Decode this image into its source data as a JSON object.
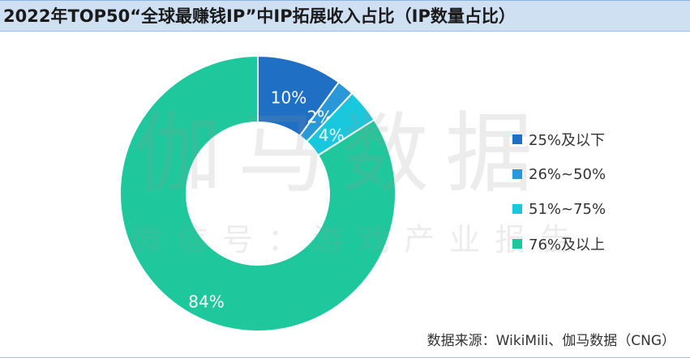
{
  "title": "2022年TOP50“全球最赚钱IP”中IP拓展收入占比（IP数量占比）",
  "source": "数据来源：WikiMili、伽马数据（CNG）",
  "watermark": {
    "main": "伽马数据",
    "sub": "微信号：游戏产业报告"
  },
  "chart_data": {
    "type": "pie",
    "donut": true,
    "title": "2022年TOP50“全球最赚钱IP”中IP拓展收入占比（IP数量占比）",
    "categories": [
      "25%及以下",
      "26%~50%",
      "51%~75%",
      "76%及以上"
    ],
    "values": [
      10,
      2,
      4,
      84
    ],
    "labels": [
      "10%",
      "2%",
      "4%",
      "84%"
    ],
    "colors": [
      "#1f6fc5",
      "#2a98d6",
      "#19c8dc",
      "#1fc79c"
    ],
    "legend": "right",
    "start_angle": "top, clockwise"
  }
}
